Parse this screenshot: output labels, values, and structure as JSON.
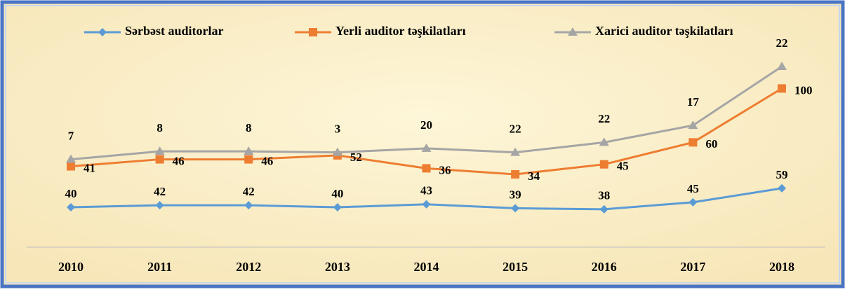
{
  "chart_data": {
    "type": "line",
    "stacked": true,
    "categories": [
      "2010",
      "2011",
      "2012",
      "2013",
      "2014",
      "2015",
      "2016",
      "2017",
      "2018"
    ],
    "series": [
      {
        "name": "Sərbəst auditorlar",
        "color": "#5b9bd5",
        "marker": "diamond",
        "values": [
          40,
          42,
          42,
          40,
          43,
          39,
          38,
          45,
          59
        ]
      },
      {
        "name": "Yerli auditor təşkilatları",
        "color": "#ed7d31",
        "marker": "square",
        "values": [
          41,
          46,
          46,
          52,
          36,
          34,
          45,
          60,
          100
        ]
      },
      {
        "name": "Xarici auditor təşkilatları",
        "color": "#a5a5a5",
        "marker": "triangle",
        "values": [
          7,
          8,
          8,
          3,
          20,
          22,
          22,
          17,
          22
        ]
      }
    ],
    "legend": "top"
  }
}
